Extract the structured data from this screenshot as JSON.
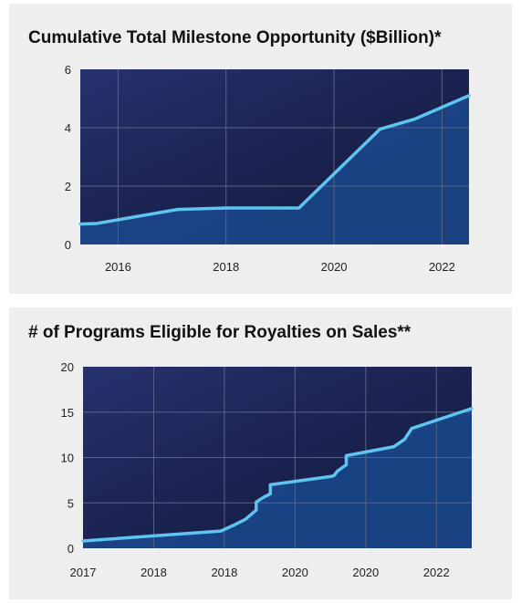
{
  "colors": {
    "background": "#eeeeee",
    "plot_dark": "#0f1535",
    "plot_mid": "#27316e",
    "area_fill": "#1a4589",
    "line": "#5ec4f0",
    "grid": "#5a6380"
  },
  "chart_data": [
    {
      "type": "area",
      "title": "Cumulative Total Milestone Opportunity ($Billion)*",
      "xlabel": "",
      "ylabel": "",
      "xlim": [
        2015.3,
        2022.5
      ],
      "ylim": [
        0,
        6
      ],
      "x_ticks": [
        2016,
        2018,
        2020,
        2022
      ],
      "x_tick_labels": [
        "2016",
        "2018",
        "2020",
        "2022"
      ],
      "y_ticks": [
        0,
        2,
        4,
        6
      ],
      "y_tick_labels": [
        "0",
        "2",
        "4",
        "6"
      ],
      "grid": true,
      "series": [
        {
          "x": [
            2015.3,
            2015.6,
            2017.1,
            2018.0,
            2019.35,
            2020.85,
            2021.5,
            2022.5
          ],
          "values": [
            0.7,
            0.72,
            1.2,
            1.25,
            1.25,
            3.95,
            4.3,
            5.1
          ]
        }
      ]
    },
    {
      "type": "area",
      "title": "# of Programs Eligible for Royalties on Sales**",
      "xlabel": "",
      "ylabel": "",
      "xlim": [
        0,
        11
      ],
      "ylim": [
        0,
        20
      ],
      "x_ticks": [
        0,
        2,
        4,
        6,
        8,
        10
      ],
      "x_tick_labels": [
        "2017",
        "2018",
        "2018",
        "2020",
        "2020",
        "2022"
      ],
      "y_ticks": [
        0,
        5,
        10,
        15,
        20
      ],
      "y_tick_labels": [
        "0",
        "5",
        "10",
        "15",
        "20"
      ],
      "grid": true,
      "series": [
        {
          "x": [
            0,
            3.9,
            4.3,
            4.6,
            4.9,
            4.9,
            5.1,
            5.3,
            5.3,
            7.0,
            7.1,
            7.2,
            7.45,
            7.45,
            8.8,
            9.1,
            9.3,
            11.0
          ],
          "values": [
            0.8,
            1.9,
            2.6,
            3.2,
            4.2,
            5.1,
            5.6,
            6.0,
            7.0,
            7.9,
            8.0,
            8.5,
            9.2,
            10.2,
            11.2,
            12.0,
            13.2,
            15.4
          ]
        }
      ]
    }
  ]
}
